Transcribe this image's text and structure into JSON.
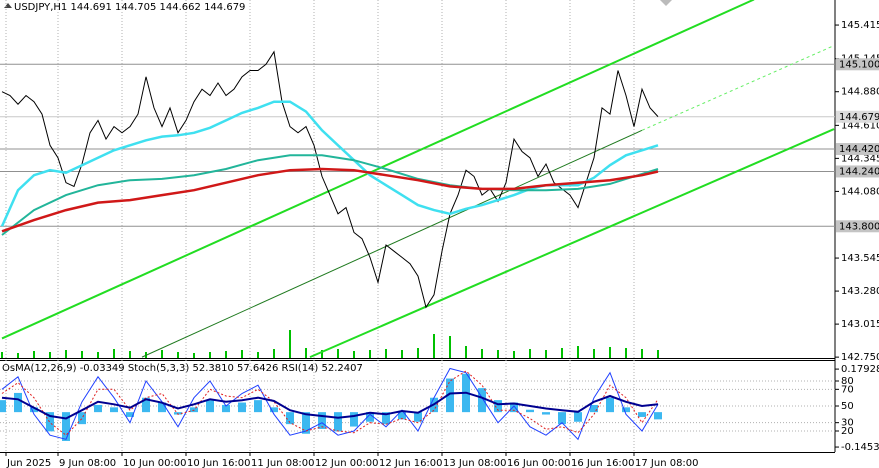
{
  "chart_data": [
    {
      "type": "line",
      "title": "USDJPY,H1  144.691 144.705 144.662 144.679",
      "xlim": [
        -0.5,
        208.25
      ],
      "xticks": [
        {
          "value": 1,
          "label": "Jun 2025"
        },
        {
          "value": 14,
          "label": "9 Jun 08:00"
        },
        {
          "value": 30,
          "label": "10 Jun 00:00"
        },
        {
          "value": 46,
          "label": "10 Jun 16:00"
        },
        {
          "value": 62,
          "label": "11 Jun 08:00"
        },
        {
          "value": 78,
          "label": "12 Jun 00:00"
        },
        {
          "value": 94,
          "label": "12 Jun 16:00"
        },
        {
          "value": 110,
          "label": "13 Jun 08:00"
        },
        {
          "value": 126,
          "label": "16 Jun 00:00"
        },
        {
          "value": 142,
          "label": "16 Jun 16:00"
        },
        {
          "value": 158,
          "label": "17 Jun 08:00"
        }
      ],
      "ylim": [
        142.743,
        145.616
      ],
      "yticks": [
        145.415,
        145.145,
        {
          "value": 144.88,
          "label": "144.880"
        },
        {
          "value": 144.61,
          "label": "144.610"
        },
        144.345,
        {
          "value": 144.08,
          "label": "144.080"
        },
        143.545,
        {
          "value": 143.28,
          "label": "143.280"
        },
        143.015,
        {
          "value": 142.75,
          "label": "142.750"
        }
      ],
      "grid": true,
      "price_line": 144.679,
      "levels": [
        {
          "value": 145.1,
          "label": "145.100"
        },
        {
          "value": 144.42,
          "label": "144.420"
        },
        {
          "value": 144.24,
          "label": "144.240"
        },
        {
          "value": 143.8,
          "label": "143.800"
        }
      ],
      "series": [
        {
          "color": "#000000",
          "x": [
            0,
            2,
            4,
            6,
            8,
            10,
            12,
            14,
            16,
            18,
            20,
            22,
            24,
            26,
            28,
            30,
            32,
            34,
            36,
            38,
            40,
            42,
            44,
            46,
            48,
            50,
            52,
            54,
            56,
            58,
            60,
            62,
            64,
            66,
            68,
            70,
            72,
            74,
            76,
            78,
            80,
            82,
            84,
            86,
            88,
            90,
            92,
            94,
            96,
            98,
            100,
            102,
            104,
            106,
            108,
            110,
            112,
            114,
            116,
            118,
            120,
            122,
            124,
            126,
            128,
            130,
            132,
            134,
            136,
            138,
            140,
            142,
            144,
            146,
            148,
            150,
            152,
            154,
            156,
            158,
            160,
            162,
            164
          ],
          "values": [
            144.88,
            144.85,
            144.78,
            144.85,
            144.8,
            144.7,
            144.45,
            144.35,
            144.15,
            144.12,
            144.3,
            144.55,
            144.65,
            144.5,
            144.6,
            144.55,
            144.6,
            144.7,
            145.0,
            144.75,
            144.6,
            144.75,
            144.55,
            144.65,
            144.8,
            144.9,
            144.85,
            144.95,
            144.85,
            144.9,
            145.0,
            145.05,
            145.05,
            145.1,
            145.2,
            144.8,
            144.6,
            144.55,
            144.6,
            144.45,
            144.2,
            144.05,
            143.9,
            143.95,
            143.75,
            143.7,
            143.55,
            143.35,
            143.65,
            143.6,
            143.55,
            143.5,
            143.4,
            143.15,
            143.25,
            143.6,
            143.9,
            144.05,
            144.25,
            144.2,
            144.05,
            144.1,
            144.0,
            144.15,
            144.5,
            144.4,
            144.35,
            144.2,
            144.3,
            144.15,
            144.1,
            144.05,
            143.95,
            144.15,
            144.35,
            144.75,
            144.7,
            145.05,
            144.85,
            144.6,
            144.9,
            144.75,
            144.68
          ]
        },
        {
          "color": "#3fe0f0",
          "x": [
            0,
            4,
            8,
            12,
            16,
            20,
            24,
            28,
            32,
            36,
            40,
            44,
            48,
            52,
            56,
            60,
            64,
            68,
            72,
            76,
            80,
            84,
            88,
            92,
            96,
            100,
            104,
            108,
            112,
            116,
            120,
            124,
            128,
            132,
            136,
            140,
            144,
            148,
            152,
            156,
            160,
            164
          ],
          "values": [
            143.8,
            144.09,
            144.21,
            144.25,
            144.23,
            144.29,
            144.35,
            144.41,
            144.45,
            144.49,
            144.52,
            144.53,
            144.55,
            144.59,
            144.65,
            144.71,
            144.75,
            144.8,
            144.8,
            144.72,
            144.57,
            144.45,
            144.33,
            144.21,
            144.13,
            144.05,
            143.97,
            143.93,
            143.9,
            143.94,
            143.97,
            144.01,
            144.05,
            144.1,
            144.13,
            144.13,
            144.13,
            144.19,
            144.29,
            144.37,
            144.41,
            144.45
          ]
        },
        {
          "color": "#22b59a",
          "x": [
            0,
            8,
            16,
            24,
            32,
            40,
            48,
            56,
            64,
            72,
            80,
            88,
            96,
            104,
            112,
            120,
            128,
            136,
            144,
            152,
            160,
            164
          ],
          "values": [
            143.73,
            143.93,
            144.05,
            144.13,
            144.17,
            144.18,
            144.21,
            144.26,
            144.33,
            144.37,
            144.37,
            144.33,
            144.26,
            144.18,
            144.13,
            144.1,
            144.09,
            144.09,
            144.1,
            144.14,
            144.22,
            144.26
          ]
        },
        {
          "color": "#d01818",
          "x": [
            0,
            8,
            16,
            24,
            32,
            40,
            48,
            56,
            64,
            72,
            80,
            88,
            96,
            104,
            112,
            120,
            128,
            136,
            144,
            152,
            160,
            164
          ],
          "values": [
            143.76,
            143.85,
            143.93,
            143.99,
            144.01,
            144.05,
            144.09,
            144.15,
            144.21,
            144.25,
            144.26,
            144.25,
            144.21,
            144.17,
            144.12,
            144.1,
            144.1,
            144.13,
            144.15,
            144.17,
            144.21,
            144.24
          ]
        }
      ],
      "trendlines": [
        {
          "color": "#22dd22",
          "x": [
            0,
            188
          ],
          "values": [
            142.9,
            145.62
          ]
        },
        {
          "color": "#22dd22",
          "x": [
            77,
            208
          ],
          "values": [
            142.75,
            144.58
          ]
        },
        {
          "color": "#1f7a1f",
          "x": [
            35,
            160,
            208
          ],
          "values": [
            142.75,
            144.57,
            145.25
          ]
        }
      ],
      "volume_color": "#00c000",
      "volumes": [
        6,
        5,
        7,
        6,
        8,
        7,
        6,
        9,
        7,
        6,
        8,
        6,
        5,
        6,
        7,
        8,
        6,
        9,
        28,
        10,
        8,
        9,
        7,
        8,
        9,
        8,
        10,
        24,
        22,
        12,
        9,
        8,
        7,
        9,
        8,
        10,
        12,
        9,
        11,
        10,
        9,
        8
      ]
    },
    {
      "type": "oscillator",
      "title": "OsMA(12,26,9) -0.03349  Stoch(5,3,3) 52.3810 57.6426  RSI(14) 52.2407",
      "x": [
        0,
        4,
        8,
        12,
        16,
        20,
        24,
        28,
        32,
        36,
        40,
        44,
        48,
        52,
        56,
        60,
        64,
        68,
        72,
        76,
        80,
        84,
        88,
        92,
        96,
        100,
        104,
        108,
        112,
        116,
        120,
        124,
        128,
        132,
        136,
        140,
        144,
        148,
        152,
        156,
        160,
        164
      ],
      "ylim": [
        -5.2,
        104
      ],
      "yticks": [
        80,
        70,
        50,
        30,
        20
      ],
      "y2lim": [
        -0.166,
        0.213
      ],
      "y2ticks": [
        0.17928,
        -0.14537
      ],
      "series": [
        {
          "type": "bar",
          "axis": "y2",
          "color": "#3cb8f0",
          "values": [
            0.05,
            0.08,
            0.02,
            -0.08,
            -0.12,
            -0.05,
            0.03,
            0.02,
            -0.02,
            0.06,
            0.04,
            -0.01,
            0.02,
            0.05,
            0.03,
            0.04,
            0.05,
            0.02,
            -0.05,
            -0.09,
            -0.07,
            -0.08,
            -0.06,
            -0.04,
            -0.05,
            -0.03,
            -0.04,
            0.06,
            0.14,
            0.16,
            0.1,
            0.05,
            0.04,
            0.01,
            -0.01,
            -0.05,
            -0.04,
            0.03,
            0.06,
            0.02,
            -0.02,
            -0.03
          ]
        },
        {
          "type": "line",
          "color": "#2040ff",
          "values": [
            70,
            85,
            40,
            15,
            10,
            55,
            85,
            60,
            30,
            80,
            55,
            25,
            60,
            80,
            50,
            65,
            75,
            40,
            15,
            20,
            30,
            15,
            20,
            40,
            25,
            45,
            20,
            60,
            95,
            90,
            60,
            30,
            50,
            25,
            15,
            30,
            10,
            60,
            90,
            40,
            20,
            52
          ]
        },
        {
          "type": "line",
          "color": "#e02020",
          "dashed": true,
          "values": [
            65,
            78,
            60,
            30,
            15,
            35,
            70,
            70,
            45,
            60,
            65,
            40,
            45,
            70,
            62,
            60,
            70,
            55,
            30,
            20,
            25,
            20,
            18,
            30,
            28,
            35,
            30,
            45,
            80,
            92,
            75,
            45,
            45,
            35,
            22,
            25,
            18,
            40,
            75,
            60,
            30,
            58
          ]
        },
        {
          "type": "line",
          "color": "#000090",
          "values": [
            60,
            58,
            48,
            38,
            35,
            45,
            55,
            52,
            48,
            58,
            54,
            47,
            52,
            58,
            55,
            57,
            60,
            56,
            45,
            40,
            38,
            36,
            38,
            42,
            40,
            44,
            42,
            52,
            65,
            66,
            60,
            52,
            53,
            50,
            47,
            45,
            43,
            55,
            62,
            55,
            50,
            52
          ]
        }
      ]
    }
  ]
}
